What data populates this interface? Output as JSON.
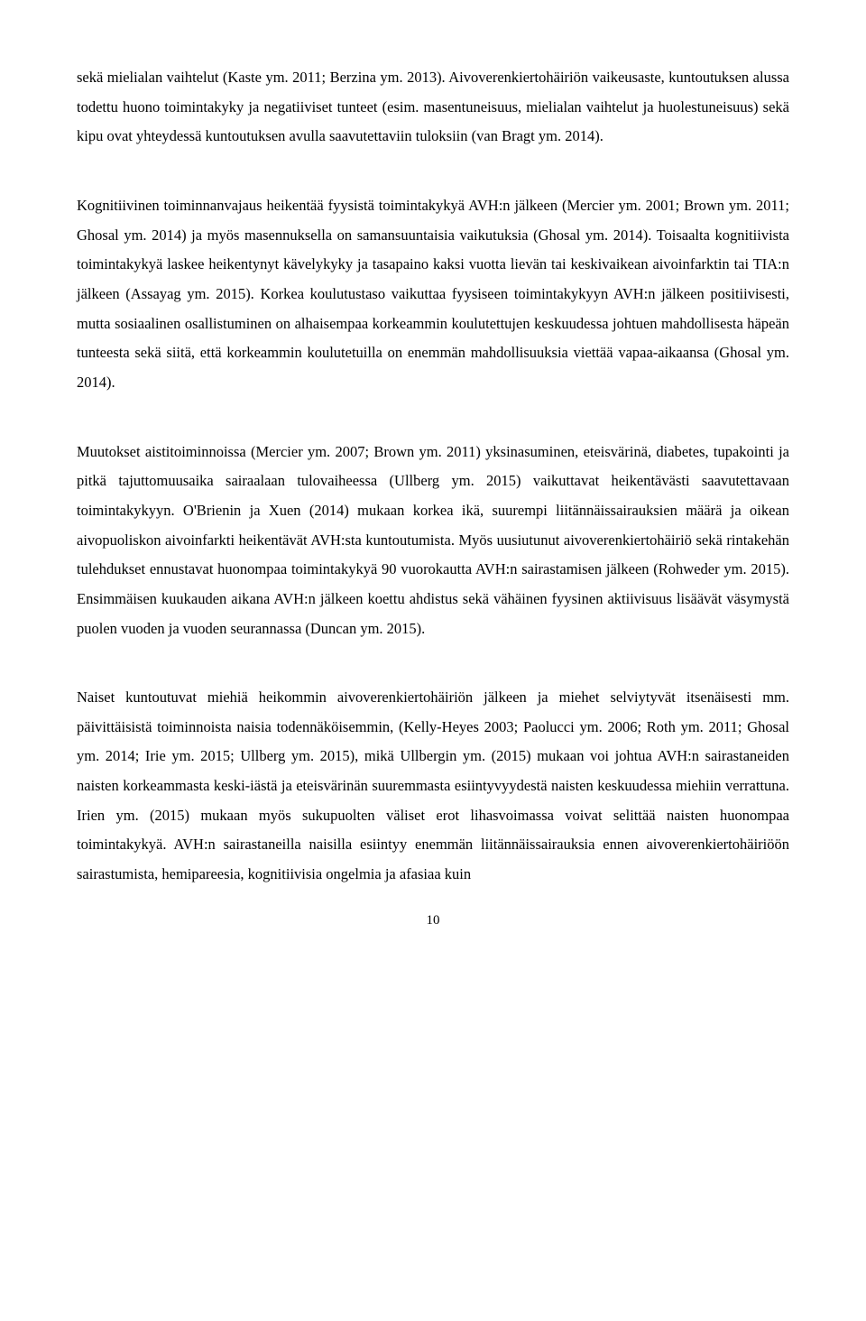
{
  "paragraphs": {
    "p1": "sekä mielialan vaihtelut (Kaste ym. 2011; Berzina ym. 2013). Aivoverenkiertohäiriön vaikeusaste, kuntoutuksen alussa todettu huono toimintakyky ja negatiiviset tunteet (esim. masentuneisuus, mielialan vaihtelut ja huolestuneisuus) sekä kipu ovat yhteydessä kuntoutuksen avulla saavutettaviin tuloksiin (van Bragt ym. 2014).",
    "p2": "Kognitiivinen toiminnanvajaus heikentää fyysistä toimintakykyä AVH:n jälkeen (Mercier ym. 2001; Brown ym. 2011; Ghosal ym. 2014) ja myös masennuksella on samansuuntaisia vaikutuksia (Ghosal ym. 2014). Toisaalta kognitiivista toimintakykyä laskee heikentynyt kävelykyky ja tasapaino kaksi vuotta lievän tai keskivaikean aivoinfarktin tai TIA:n jälkeen (Assayag ym. 2015). Korkea koulutustaso vaikuttaa fyysiseen toimintakykyyn AVH:n jälkeen positiivisesti, mutta sosiaalinen osallistuminen on alhaisempaa korkeammin koulutettujen keskuudessa johtuen mahdollisesta häpeän tunteesta sekä siitä, että korkeammin koulutetuilla on enemmän mahdollisuuksia viettää vapaa-aikaansa (Ghosal ym. 2014).",
    "p3": "Muutokset aistitoiminnoissa (Mercier ym. 2007; Brown ym. 2011) yksinasuminen, eteisvärinä, diabetes, tupakointi ja pitkä tajuttomuusaika sairaalaan tulovaiheessa (Ullberg ym. 2015) vaikuttavat heikentävästi saavutettavaan toimintakykyyn. O'Brienin ja Xuen (2014) mukaan korkea ikä, suurempi liitännäissairauksien määrä ja oikean aivopuoliskon aivoinfarkti heikentävät AVH:sta kuntoutumista. Myös uusiutunut aivoverenkiertohäiriö sekä rintakehän tulehdukset ennustavat huonompaa toimintakykyä 90 vuorokautta AVH:n sairastamisen jälkeen (Rohweder ym. 2015). Ensimmäisen kuukauden aikana AVH:n jälkeen koettu ahdistus sekä vähäinen fyysinen aktiivisuus lisäävät väsymystä puolen vuoden ja vuoden seurannassa (Duncan ym. 2015).",
    "p4": "Naiset kuntoutuvat miehiä heikommin aivoverenkiertohäiriön jälkeen ja miehet selviytyvät itsenäisesti mm. päivittäisistä toiminnoista naisia todennäköisemmin, (Kelly-Heyes 2003; Paolucci ym. 2006; Roth ym. 2011; Ghosal ym. 2014; Irie ym. 2015; Ullberg ym. 2015), mikä Ullbergin ym. (2015) mukaan voi johtua AVH:n sairastaneiden naisten korkeammasta keski-iästä ja eteisvärinän suuremmasta esiintyvyydestä naisten keskuudessa miehiin verrattuna. Irien ym. (2015) mukaan myös sukupuolten väliset erot lihasvoimassa voivat selittää naisten huonompaa toimintakykyä. AVH:n sairastaneilla naisilla esiintyy enemmän liitännäissairauksia ennen aivoverenkiertohäiriöön sairastumista, hemipareesia, kognitiivisia ongelmia ja afasiaa kuin"
  },
  "pageNumber": "10"
}
